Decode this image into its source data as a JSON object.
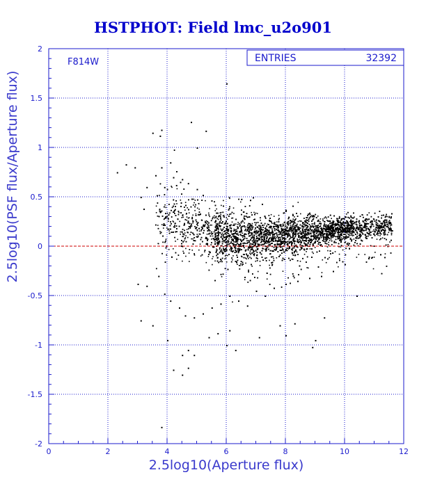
{
  "chart_data": {
    "type": "scatter",
    "title": "HSTPHOT: Field lmc_u2o901",
    "xlabel": "2.5log10(Aperture flux)",
    "ylabel": "2.5log10(PSF flux/Aperture flux)",
    "xlim": [
      0,
      12
    ],
    "ylim": [
      -2,
      2
    ],
    "x_ticks": [
      "0",
      "2",
      "4",
      "6",
      "8",
      "10",
      "12"
    ],
    "y_ticks": [
      "-2",
      "-1.5",
      "-1",
      "-0.5",
      "0",
      "0.5",
      "1",
      "1.5",
      "2"
    ],
    "grid": true,
    "filter_label": "F814W",
    "stats": {
      "label": "ENTRIES",
      "value": "32392"
    },
    "reference_line": {
      "y": 0,
      "color": "#cc0000",
      "style": "dashed"
    },
    "colors": {
      "axes": "#1a1acc",
      "title": "#0000cc",
      "points": "#000000",
      "reference": "#cc0000"
    },
    "series": [
      {
        "points": [
          [
            3.8,
            0.8
          ],
          [
            4.1,
            0.85
          ],
          [
            2.6,
            0.83
          ],
          [
            2.9,
            0.8
          ],
          [
            2.3,
            0.75
          ],
          [
            3.5,
            1.15
          ],
          [
            3.8,
            1.18
          ],
          [
            3.75,
            1.12
          ],
          [
            4.8,
            1.26
          ],
          [
            5.3,
            1.17
          ],
          [
            5.0,
            1.0
          ],
          [
            6.0,
            1.65
          ],
          [
            4.2,
            0.7
          ],
          [
            3.3,
            0.6
          ],
          [
            3.6,
            0.72
          ],
          [
            3.9,
            0.6
          ],
          [
            4.3,
            0.62
          ],
          [
            4.5,
            0.68
          ],
          [
            4.7,
            0.64
          ],
          [
            5.0,
            0.58
          ],
          [
            5.2,
            0.52
          ],
          [
            6.5,
            0.48
          ],
          [
            6.8,
            0.47
          ],
          [
            7.2,
            0.43
          ],
          [
            8.0,
            0.36
          ],
          [
            8.8,
            0.34
          ],
          [
            9.5,
            0.32
          ],
          [
            10.2,
            0.3
          ],
          [
            10.8,
            0.28
          ],
          [
            11.4,
            0.27
          ],
          [
            3.1,
            0.5
          ],
          [
            3.2,
            0.38
          ],
          [
            3.0,
            -0.38
          ],
          [
            3.3,
            -0.4
          ],
          [
            3.7,
            -0.3
          ],
          [
            3.9,
            -0.48
          ],
          [
            4.1,
            -0.55
          ],
          [
            4.4,
            -0.62
          ],
          [
            4.6,
            -0.7
          ],
          [
            4.9,
            -0.72
          ],
          [
            5.2,
            -0.68
          ],
          [
            5.5,
            -0.62
          ],
          [
            5.8,
            -0.58
          ],
          [
            6.1,
            -0.5
          ],
          [
            6.4,
            -0.55
          ],
          [
            6.7,
            -0.6
          ],
          [
            7.0,
            -0.45
          ],
          [
            7.3,
            -0.5
          ],
          [
            7.6,
            -0.42
          ],
          [
            8.0,
            -0.38
          ],
          [
            8.4,
            -0.35
          ],
          [
            8.8,
            -0.32
          ],
          [
            9.2,
            -0.3
          ],
          [
            9.6,
            -0.25
          ],
          [
            10.0,
            -0.18
          ],
          [
            10.4,
            -0.5
          ],
          [
            10.8,
            -0.12
          ],
          [
            11.2,
            -0.08
          ],
          [
            3.1,
            -0.75
          ],
          [
            3.5,
            -0.8
          ],
          [
            4.0,
            -0.95
          ],
          [
            4.5,
            -1.1
          ],
          [
            4.7,
            -1.05
          ],
          [
            5.4,
            -0.92
          ],
          [
            5.7,
            -0.88
          ],
          [
            6.1,
            -0.85
          ],
          [
            6.3,
            -1.05
          ],
          [
            7.1,
            -0.92
          ],
          [
            7.8,
            -0.8
          ],
          [
            8.3,
            -0.78
          ],
          [
            8.9,
            -1.02
          ],
          [
            9.3,
            -0.72
          ],
          [
            3.8,
            -1.83
          ],
          [
            4.2,
            -1.25
          ],
          [
            4.7,
            -1.23
          ],
          [
            4.5,
            -1.3
          ],
          [
            4.9,
            -1.1
          ],
          [
            6.0,
            -1.0
          ],
          [
            8.0,
            -0.9
          ],
          [
            9.0,
            -0.95
          ]
        ]
      }
    ],
    "dense_cloud": {
      "entries": 32392,
      "ridge": [
        [
          4.0,
          0.32
        ],
        [
          4.5,
          0.26
        ],
        [
          5.0,
          0.2
        ],
        [
          5.5,
          0.13
        ],
        [
          6.0,
          0.1
        ],
        [
          7.0,
          0.1
        ],
        [
          8.0,
          0.12
        ],
        [
          9.0,
          0.15
        ],
        [
          10.0,
          0.18
        ],
        [
          11.0,
          0.2
        ],
        [
          11.5,
          0.22
        ]
      ],
      "x_range": [
        3.6,
        11.6
      ]
    }
  }
}
